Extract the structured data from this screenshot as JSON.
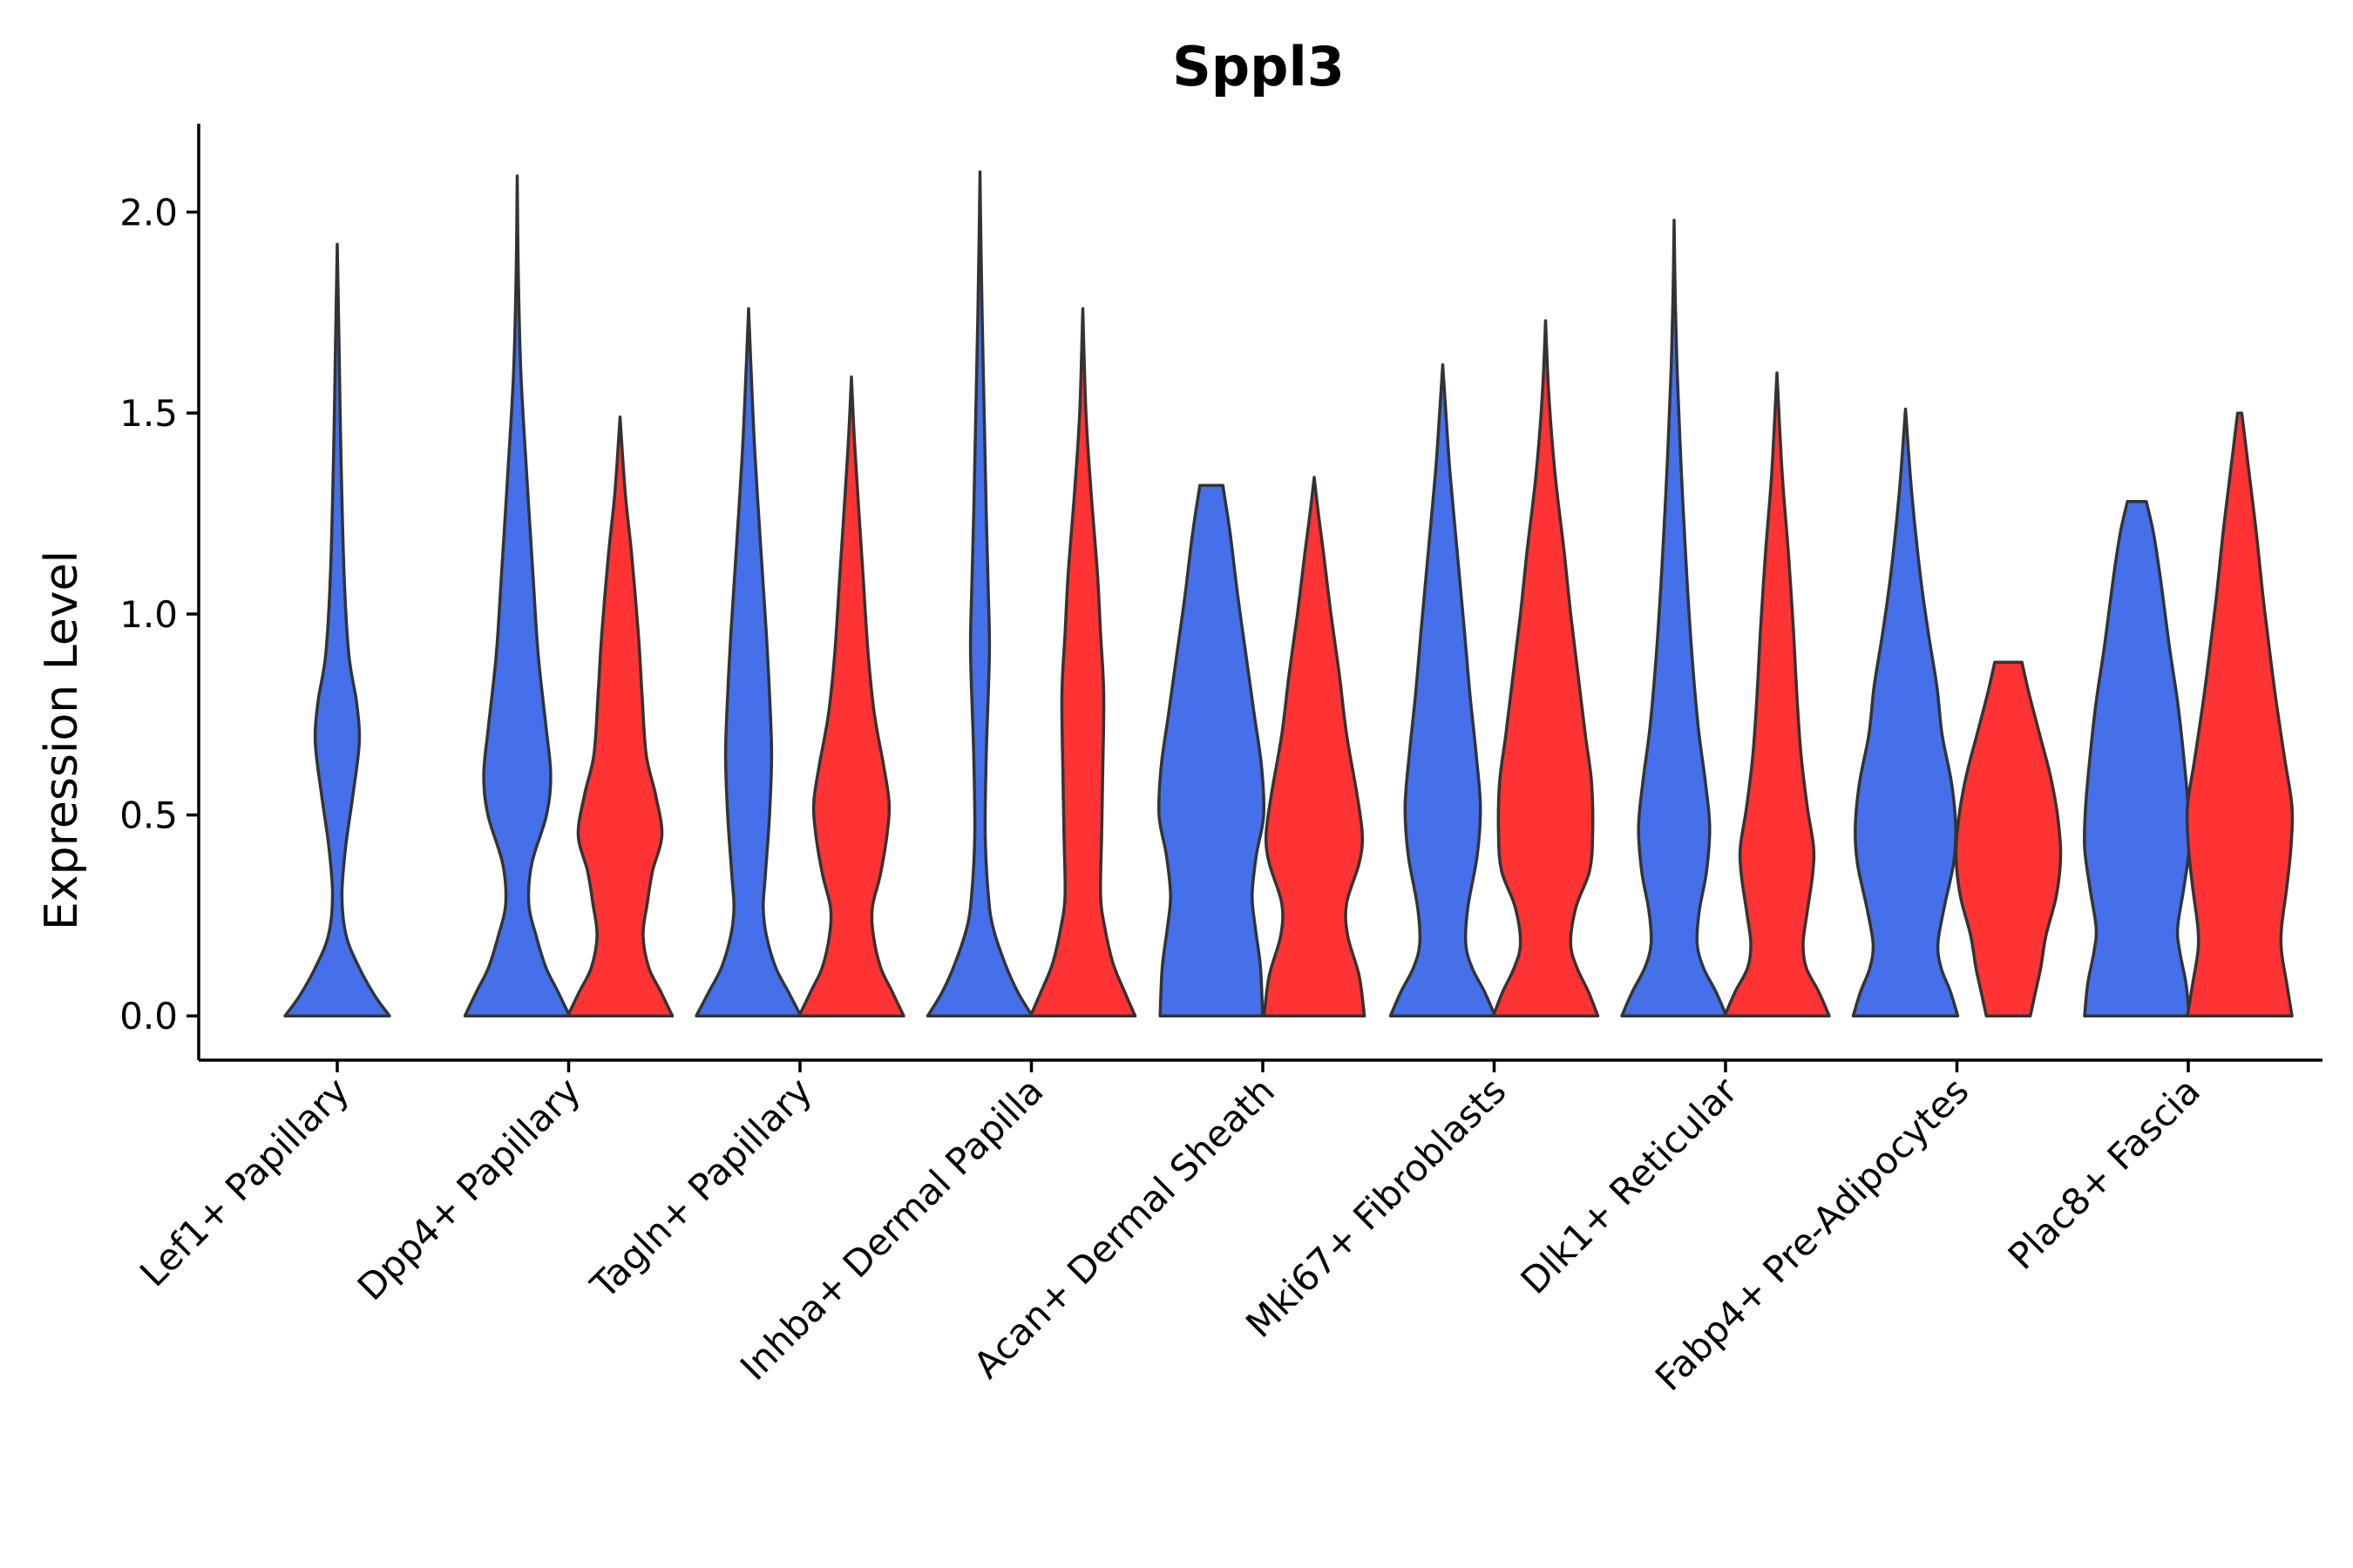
{
  "chart_data": {
    "type": "violin",
    "title": "Sppl3",
    "xlabel": "",
    "ylabel": "Expression Level",
    "ylim": [
      -0.11,
      2.22
    ],
    "yticks": [
      0.0,
      0.5,
      1.0,
      1.5,
      2.0
    ],
    "ytick_labels": [
      "0.0",
      "0.5",
      "1.0",
      "1.5",
      "2.0"
    ],
    "categories": [
      "Lef1+ Papillary",
      "Dpp4+ Papillary",
      "Tagln+ Papillary",
      "Inhba+ Dermal Papilla",
      "Acan+ Dermal Sheath",
      "Mki67+ Fibroblasts",
      "Dlk1+ Reticular",
      "Fabp4+ Pre-Adipocytes",
      "Plac8+ Fascia"
    ],
    "colors": {
      "blue": "#4570EA",
      "red": "#FF3333"
    },
    "violins": [
      {
        "category": "Lef1+ Papillary",
        "group": "blue",
        "max": 1.92,
        "profile": [
          [
            0.0,
            1.0
          ],
          [
            0.05,
            0.72
          ],
          [
            0.12,
            0.42
          ],
          [
            0.2,
            0.17
          ],
          [
            0.3,
            0.09
          ],
          [
            0.42,
            0.16
          ],
          [
            0.55,
            0.3
          ],
          [
            0.68,
            0.42
          ],
          [
            0.78,
            0.37
          ],
          [
            0.9,
            0.22
          ],
          [
            1.1,
            0.13
          ],
          [
            1.4,
            0.07
          ],
          [
            1.7,
            0.03
          ],
          [
            1.92,
            0.0
          ]
        ]
      },
      {
        "category": "Dpp4+ Papillary",
        "group": "blue",
        "max": 2.09,
        "profile": [
          [
            0.0,
            1.0
          ],
          [
            0.06,
            0.78
          ],
          [
            0.12,
            0.55
          ],
          [
            0.2,
            0.36
          ],
          [
            0.28,
            0.22
          ],
          [
            0.38,
            0.28
          ],
          [
            0.5,
            0.56
          ],
          [
            0.6,
            0.64
          ],
          [
            0.72,
            0.55
          ],
          [
            0.9,
            0.4
          ],
          [
            1.1,
            0.3
          ],
          [
            1.35,
            0.18
          ],
          [
            1.6,
            0.07
          ],
          [
            1.85,
            0.02
          ],
          [
            2.09,
            0.0
          ]
        ]
      },
      {
        "category": "Dpp4+ Papillary",
        "group": "red",
        "max": 1.49,
        "profile": [
          [
            0.0,
            1.0
          ],
          [
            0.06,
            0.78
          ],
          [
            0.12,
            0.55
          ],
          [
            0.2,
            0.44
          ],
          [
            0.28,
            0.52
          ],
          [
            0.36,
            0.62
          ],
          [
            0.45,
            0.8
          ],
          [
            0.55,
            0.68
          ],
          [
            0.65,
            0.5
          ],
          [
            0.8,
            0.42
          ],
          [
            0.95,
            0.35
          ],
          [
            1.15,
            0.22
          ],
          [
            1.3,
            0.1
          ],
          [
            1.49,
            0.0
          ]
        ]
      },
      {
        "category": "Tagln+ Papillary",
        "group": "blue",
        "max": 1.76,
        "profile": [
          [
            0.0,
            1.0
          ],
          [
            0.06,
            0.76
          ],
          [
            0.12,
            0.52
          ],
          [
            0.2,
            0.34
          ],
          [
            0.27,
            0.28
          ],
          [
            0.35,
            0.32
          ],
          [
            0.5,
            0.4
          ],
          [
            0.65,
            0.44
          ],
          [
            0.8,
            0.4
          ],
          [
            0.95,
            0.34
          ],
          [
            1.15,
            0.24
          ],
          [
            1.4,
            0.12
          ],
          [
            1.6,
            0.05
          ],
          [
            1.76,
            0.0
          ]
        ]
      },
      {
        "category": "Tagln+ Papillary",
        "group": "red",
        "max": 1.59,
        "profile": [
          [
            0.0,
            1.0
          ],
          [
            0.06,
            0.78
          ],
          [
            0.12,
            0.56
          ],
          [
            0.2,
            0.42
          ],
          [
            0.27,
            0.4
          ],
          [
            0.35,
            0.55
          ],
          [
            0.45,
            0.68
          ],
          [
            0.53,
            0.72
          ],
          [
            0.62,
            0.62
          ],
          [
            0.75,
            0.44
          ],
          [
            0.9,
            0.32
          ],
          [
            1.1,
            0.22
          ],
          [
            1.3,
            0.12
          ],
          [
            1.45,
            0.05
          ],
          [
            1.59,
            0.0
          ]
        ]
      },
      {
        "category": "Inhba+ Dermal Papilla",
        "group": "blue",
        "max": 2.1,
        "profile": [
          [
            0.0,
            1.0
          ],
          [
            0.06,
            0.72
          ],
          [
            0.13,
            0.48
          ],
          [
            0.22,
            0.25
          ],
          [
            0.3,
            0.16
          ],
          [
            0.45,
            0.1
          ],
          [
            0.65,
            0.12
          ],
          [
            0.9,
            0.18
          ],
          [
            1.05,
            0.16
          ],
          [
            1.25,
            0.12
          ],
          [
            1.5,
            0.08
          ],
          [
            1.75,
            0.04
          ],
          [
            1.95,
            0.015
          ],
          [
            2.1,
            0.0
          ]
        ]
      },
      {
        "category": "Inhba+ Dermal Papilla",
        "group": "red",
        "max": 1.76,
        "profile": [
          [
            0.0,
            1.0
          ],
          [
            0.06,
            0.8
          ],
          [
            0.13,
            0.58
          ],
          [
            0.22,
            0.42
          ],
          [
            0.3,
            0.34
          ],
          [
            0.45,
            0.36
          ],
          [
            0.6,
            0.38
          ],
          [
            0.8,
            0.4
          ],
          [
            0.95,
            0.34
          ],
          [
            1.1,
            0.28
          ],
          [
            1.3,
            0.16
          ],
          [
            1.5,
            0.06
          ],
          [
            1.76,
            0.0
          ]
        ]
      },
      {
        "category": "Acan+ Dermal Sheath",
        "group": "blue",
        "max": 1.32,
        "profile": [
          [
            0.0,
            0.98
          ],
          [
            0.12,
            0.94
          ],
          [
            0.22,
            0.84
          ],
          [
            0.3,
            0.78
          ],
          [
            0.4,
            0.86
          ],
          [
            0.5,
            1.0
          ],
          [
            0.62,
            0.96
          ],
          [
            0.75,
            0.82
          ],
          [
            0.9,
            0.66
          ],
          [
            1.05,
            0.5
          ],
          [
            1.2,
            0.36
          ],
          [
            1.32,
            0.22
          ]
        ]
      },
      {
        "category": "Acan+ Dermal Sheath",
        "group": "red",
        "max": 1.34,
        "profile": [
          [
            0.0,
            0.96
          ],
          [
            0.1,
            0.86
          ],
          [
            0.2,
            0.64
          ],
          [
            0.28,
            0.62
          ],
          [
            0.38,
            0.86
          ],
          [
            0.45,
            0.92
          ],
          [
            0.55,
            0.82
          ],
          [
            0.7,
            0.62
          ],
          [
            0.85,
            0.48
          ],
          [
            1.0,
            0.32
          ],
          [
            1.15,
            0.18
          ],
          [
            1.25,
            0.08
          ],
          [
            1.34,
            0.0
          ]
        ]
      },
      {
        "category": "Mki67+ Fibroblasts",
        "group": "blue",
        "max": 1.62,
        "profile": [
          [
            0.0,
            1.0
          ],
          [
            0.06,
            0.8
          ],
          [
            0.12,
            0.56
          ],
          [
            0.18,
            0.44
          ],
          [
            0.27,
            0.48
          ],
          [
            0.4,
            0.66
          ],
          [
            0.52,
            0.72
          ],
          [
            0.65,
            0.64
          ],
          [
            0.8,
            0.52
          ],
          [
            0.95,
            0.42
          ],
          [
            1.15,
            0.28
          ],
          [
            1.35,
            0.14
          ],
          [
            1.5,
            0.06
          ],
          [
            1.62,
            0.0
          ]
        ]
      },
      {
        "category": "Mki67+ Fibroblasts",
        "group": "red",
        "max": 1.73,
        "profile": [
          [
            0.0,
            1.0
          ],
          [
            0.06,
            0.82
          ],
          [
            0.12,
            0.6
          ],
          [
            0.18,
            0.48
          ],
          [
            0.27,
            0.58
          ],
          [
            0.36,
            0.84
          ],
          [
            0.45,
            0.9
          ],
          [
            0.58,
            0.88
          ],
          [
            0.7,
            0.76
          ],
          [
            0.85,
            0.62
          ],
          [
            1.0,
            0.48
          ],
          [
            1.15,
            0.36
          ],
          [
            1.35,
            0.18
          ],
          [
            1.55,
            0.06
          ],
          [
            1.73,
            0.0
          ]
        ]
      },
      {
        "category": "Dlk1+ Reticular",
        "group": "blue",
        "max": 1.98,
        "profile": [
          [
            0.0,
            1.0
          ],
          [
            0.06,
            0.8
          ],
          [
            0.12,
            0.56
          ],
          [
            0.18,
            0.44
          ],
          [
            0.26,
            0.48
          ],
          [
            0.36,
            0.62
          ],
          [
            0.47,
            0.68
          ],
          [
            0.58,
            0.6
          ],
          [
            0.72,
            0.46
          ],
          [
            0.9,
            0.34
          ],
          [
            1.1,
            0.24
          ],
          [
            1.35,
            0.14
          ],
          [
            1.6,
            0.06
          ],
          [
            1.8,
            0.02
          ],
          [
            1.98,
            0.0
          ]
        ]
      },
      {
        "category": "Dlk1+ Reticular",
        "group": "red",
        "max": 1.6,
        "profile": [
          [
            0.0,
            1.0
          ],
          [
            0.06,
            0.8
          ],
          [
            0.12,
            0.56
          ],
          [
            0.18,
            0.5
          ],
          [
            0.26,
            0.58
          ],
          [
            0.35,
            0.68
          ],
          [
            0.42,
            0.7
          ],
          [
            0.52,
            0.58
          ],
          [
            0.65,
            0.46
          ],
          [
            0.8,
            0.38
          ],
          [
            0.95,
            0.32
          ],
          [
            1.15,
            0.22
          ],
          [
            1.35,
            0.1
          ],
          [
            1.6,
            0.0
          ]
        ]
      },
      {
        "category": "Fabp4+ Pre-Adipocytes",
        "group": "blue",
        "max": 1.51,
        "profile": [
          [
            0.0,
            1.0
          ],
          [
            0.06,
            0.86
          ],
          [
            0.12,
            0.68
          ],
          [
            0.18,
            0.62
          ],
          [
            0.27,
            0.74
          ],
          [
            0.38,
            0.92
          ],
          [
            0.47,
            0.96
          ],
          [
            0.58,
            0.88
          ],
          [
            0.7,
            0.7
          ],
          [
            0.82,
            0.6
          ],
          [
            0.95,
            0.44
          ],
          [
            1.1,
            0.28
          ],
          [
            1.3,
            0.12
          ],
          [
            1.51,
            0.0
          ]
        ]
      },
      {
        "category": "Fabp4+ Pre-Adipocytes",
        "group": "red",
        "max": 0.88,
        "profile": [
          [
            0.0,
            0.42
          ],
          [
            0.06,
            0.52
          ],
          [
            0.12,
            0.62
          ],
          [
            0.2,
            0.72
          ],
          [
            0.3,
            0.92
          ],
          [
            0.4,
            1.0
          ],
          [
            0.5,
            0.94
          ],
          [
            0.6,
            0.8
          ],
          [
            0.7,
            0.6
          ],
          [
            0.8,
            0.4
          ],
          [
            0.88,
            0.26
          ]
        ]
      },
      {
        "category": "Plac8+ Fascia",
        "group": "blue",
        "max": 1.28,
        "profile": [
          [
            0.0,
            1.0
          ],
          [
            0.08,
            0.94
          ],
          [
            0.16,
            0.82
          ],
          [
            0.22,
            0.78
          ],
          [
            0.32,
            0.9
          ],
          [
            0.42,
            1.0
          ],
          [
            0.52,
            0.98
          ],
          [
            0.64,
            0.9
          ],
          [
            0.78,
            0.78
          ],
          [
            0.92,
            0.62
          ],
          [
            1.08,
            0.46
          ],
          [
            1.2,
            0.32
          ],
          [
            1.28,
            0.18
          ]
        ]
      },
      {
        "category": "Plac8+ Fascia",
        "group": "red",
        "max": 1.5,
        "profile": [
          [
            0.0,
            1.0
          ],
          [
            0.08,
            0.9
          ],
          [
            0.16,
            0.8
          ],
          [
            0.22,
            0.8
          ],
          [
            0.32,
            0.9
          ],
          [
            0.42,
            0.98
          ],
          [
            0.52,
            1.0
          ],
          [
            0.64,
            0.86
          ],
          [
            0.78,
            0.7
          ],
          [
            0.9,
            0.58
          ],
          [
            1.05,
            0.44
          ],
          [
            1.2,
            0.32
          ],
          [
            1.35,
            0.18
          ],
          [
            1.5,
            0.04
          ]
        ]
      }
    ]
  }
}
